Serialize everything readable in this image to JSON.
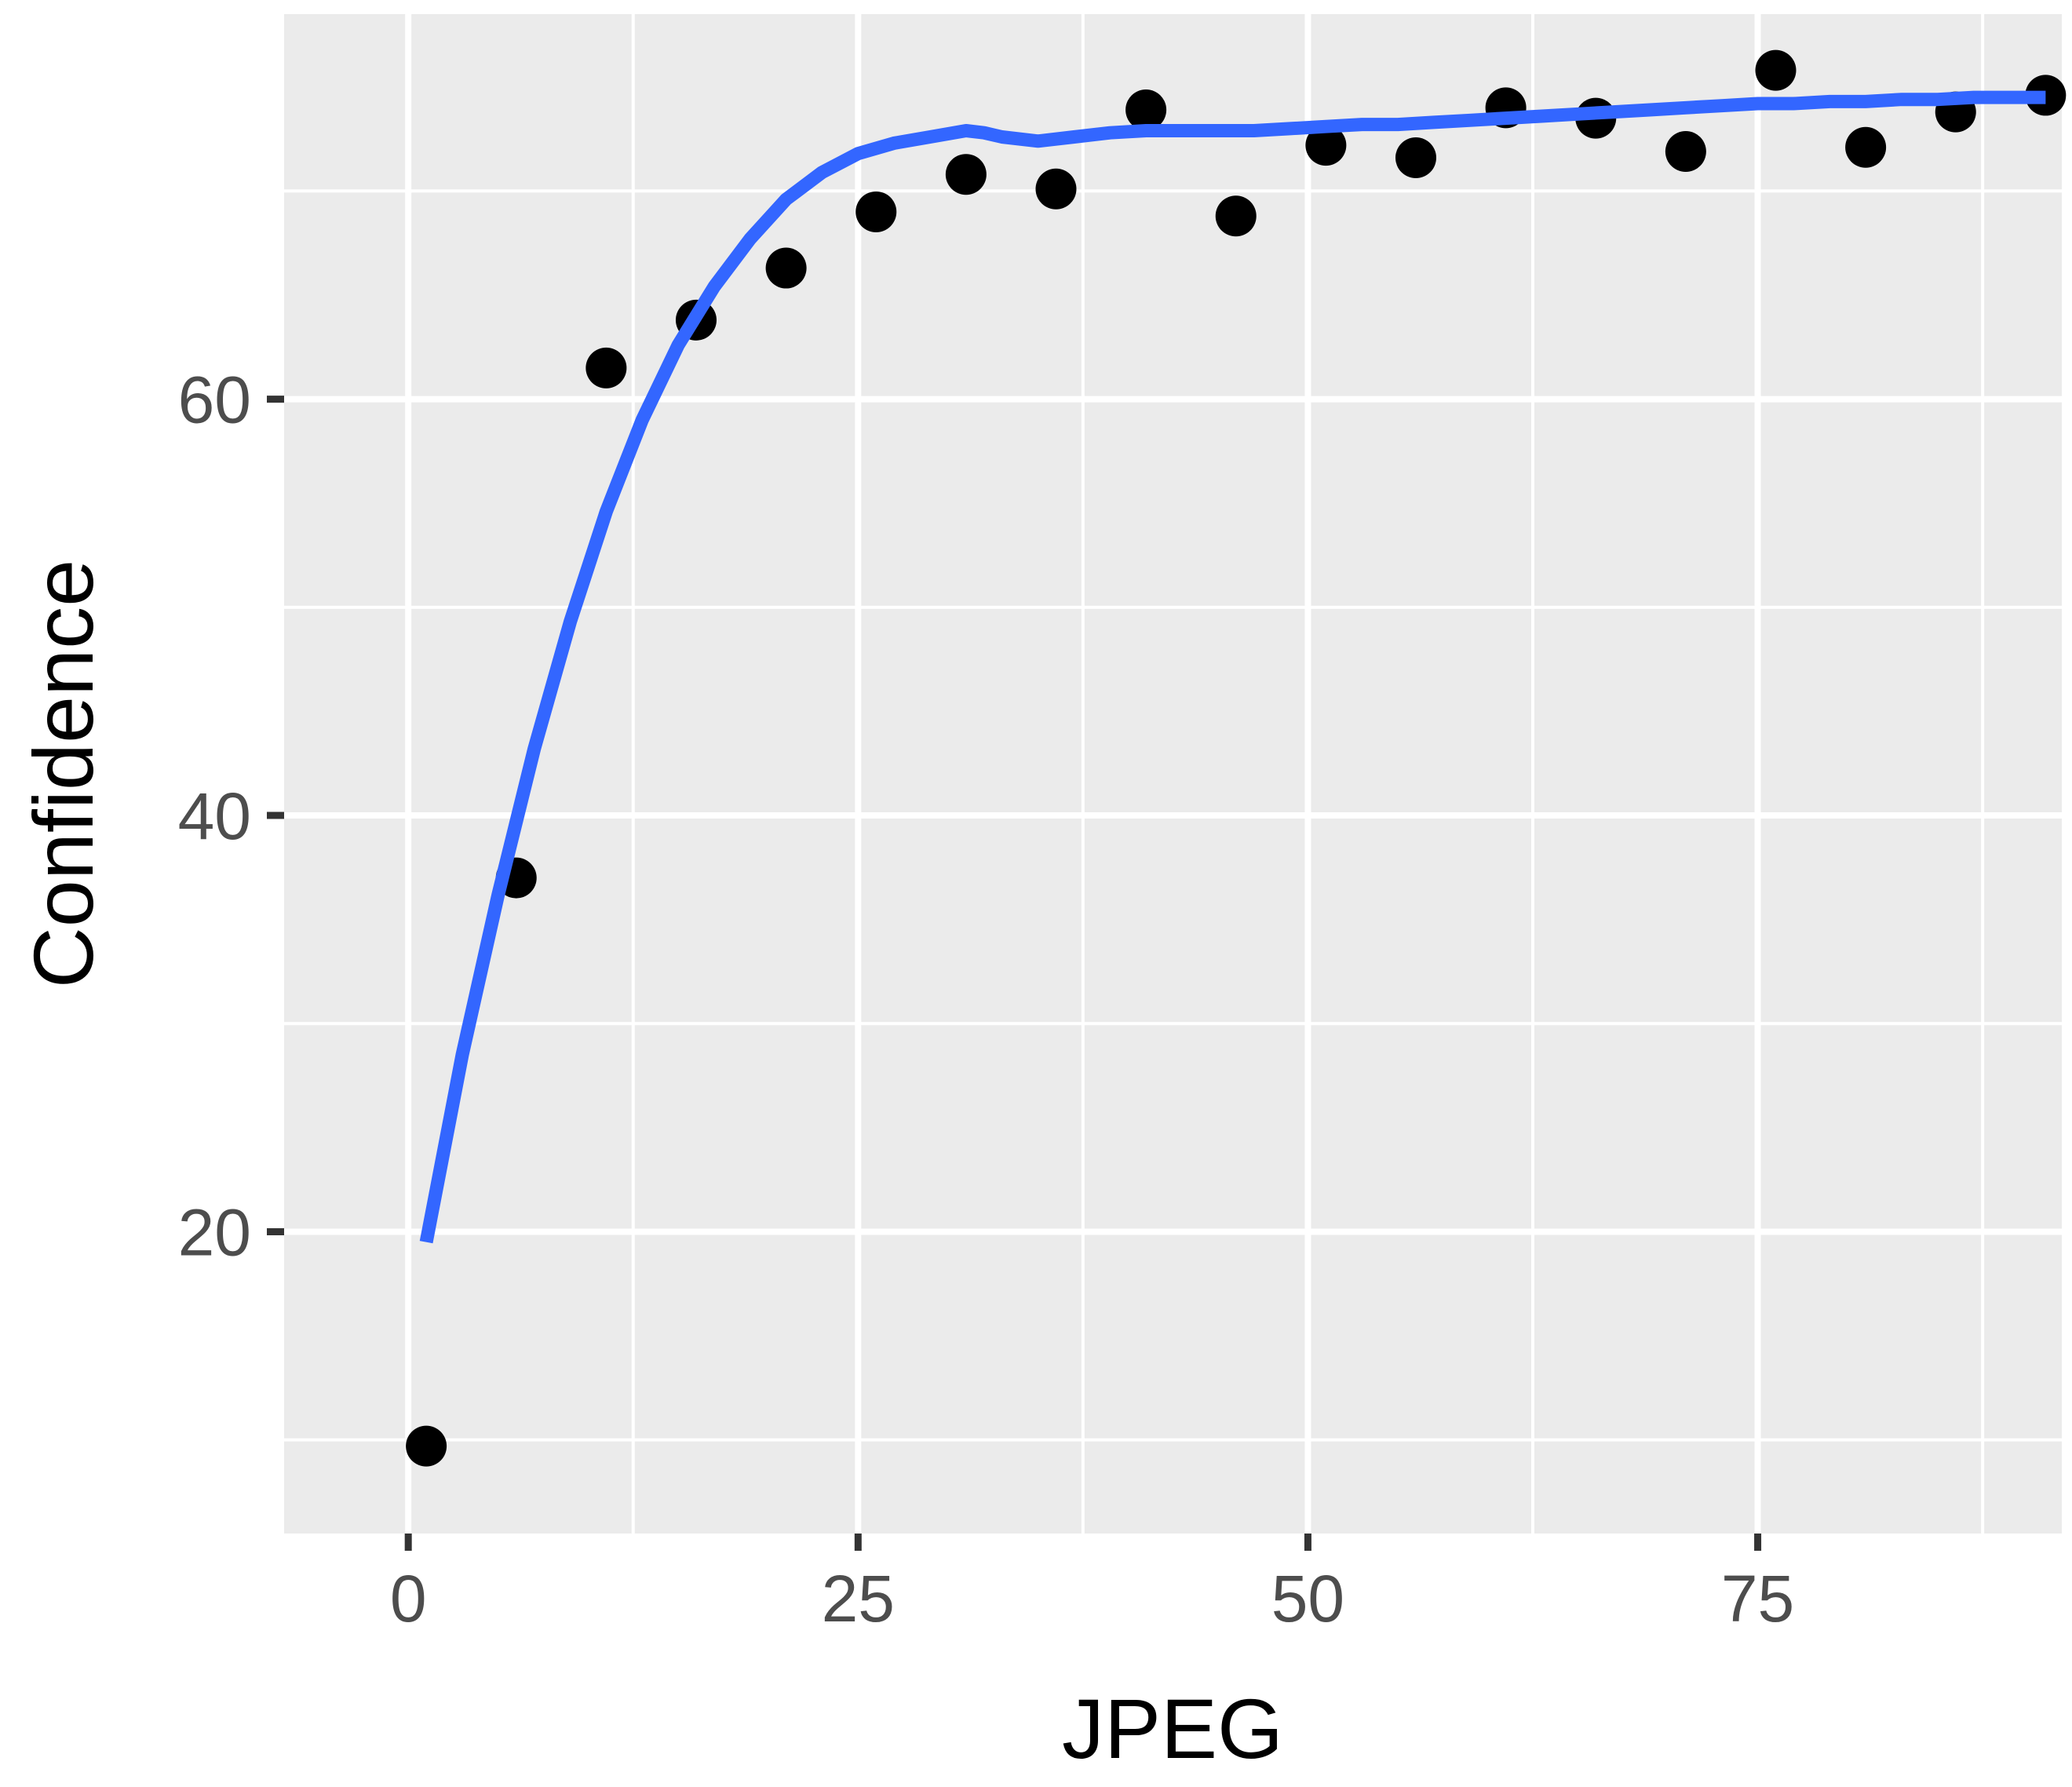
{
  "chart_data": {
    "type": "scatter",
    "xlabel": "JPEG",
    "ylabel": "Confidence",
    "xlim": [
      -6.9,
      91.9
    ],
    "ylim": [
      5.5,
      78.5
    ],
    "x_ticks": [
      0,
      25,
      50,
      75
    ],
    "x_tick_labels": [
      "0",
      "25",
      "50",
      "75"
    ],
    "y_ticks": [
      20,
      40,
      60
    ],
    "y_tick_labels": [
      "20",
      "40",
      "60"
    ],
    "x_minor_grid": [
      12.5,
      37.5,
      62.5,
      87.5
    ],
    "y_minor_grid": [
      10,
      30,
      50,
      70
    ],
    "grid": true,
    "legend": "none",
    "colors": {
      "panel_background": "#ebebeb",
      "grid": "#ffffff",
      "points": "#000000",
      "smooth_line": "#3366ff",
      "tick_label": "#4d4d4d",
      "tick_mark": "#333333",
      "axis_title": "#000000"
    },
    "points": {
      "x": [
        1,
        6,
        11,
        16,
        21,
        26,
        31,
        36,
        41,
        46,
        51,
        56,
        61,
        66,
        71,
        76,
        81,
        86,
        91
      ],
      "y": [
        9.7,
        37.0,
        61.5,
        63.8,
        66.3,
        69.0,
        70.8,
        70.1,
        73.9,
        68.8,
        72.2,
        71.6,
        74.0,
        73.5,
        71.9,
        75.8,
        72.1,
        73.8,
        74.6
      ]
    },
    "smooth": {
      "x": [
        1,
        3,
        5,
        7,
        9,
        11,
        13,
        15,
        17,
        19,
        21,
        23,
        25,
        27,
        29,
        31,
        32,
        33,
        35,
        37,
        39,
        41,
        43,
        45,
        47,
        49,
        51,
        53,
        55,
        57,
        59,
        61,
        63,
        65,
        67,
        69,
        71,
        73,
        75,
        77,
        79,
        81,
        83,
        85,
        87,
        89,
        91
      ],
      "y": [
        19.5,
        28.5,
        36.2,
        43.2,
        49.3,
        54.6,
        59.0,
        62.6,
        65.4,
        67.7,
        69.6,
        70.9,
        71.8,
        72.3,
        72.6,
        72.9,
        72.8,
        72.6,
        72.4,
        72.6,
        72.8,
        72.9,
        72.9,
        72.9,
        72.9,
        73.0,
        73.1,
        73.2,
        73.2,
        73.3,
        73.4,
        73.5,
        73.6,
        73.7,
        73.8,
        73.9,
        74.0,
        74.1,
        74.2,
        74.2,
        74.3,
        74.3,
        74.4,
        74.4,
        74.5,
        74.5,
        74.5
      ]
    }
  }
}
